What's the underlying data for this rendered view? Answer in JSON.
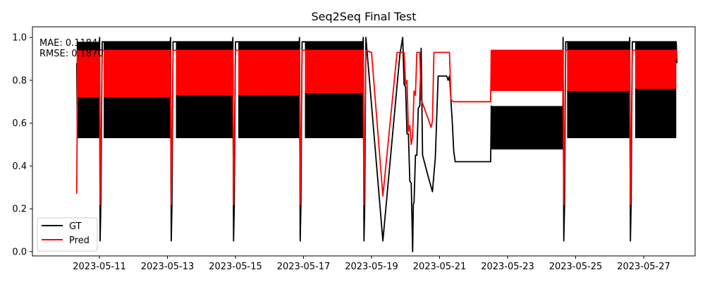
{
  "chart_data": {
    "type": "line",
    "title": "Seq2Seq Final Test",
    "xlabel": "",
    "ylabel": "",
    "x_tick_labels": [
      "2023-05-11",
      "2023-05-13",
      "2023-05-15",
      "2023-05-17",
      "2023-05-19",
      "2023-05-21",
      "2023-05-23",
      "2023-05-25",
      "2023-05-27"
    ],
    "y_tick_labels": [
      "0.0",
      "0.2",
      "0.4",
      "0.6",
      "0.8",
      "1.0"
    ],
    "ylim": [
      -0.02,
      1.05
    ],
    "metrics": [
      "MAE: 0.1184",
      "RMSE: 0.1870"
    ],
    "legend": {
      "position": "lower-left",
      "entries": [
        "GT",
        "Pred"
      ]
    },
    "series": [
      {
        "name": "GT",
        "color": "#000000",
        "bands": [
          {
            "x_start": "2023-05-10 08:00",
            "x_end": "2023-05-11 00:00",
            "low": 0.53,
            "high": 0.98
          },
          {
            "x_start": "2023-05-11 03:00",
            "x_end": "2023-05-13 02:00",
            "low": 0.53,
            "high": 0.98
          },
          {
            "x_start": "2023-05-13 06:00",
            "x_end": "2023-05-14 22:00",
            "low": 0.53,
            "high": 0.98
          },
          {
            "x_start": "2023-05-15 02:00",
            "x_end": "2023-05-16 21:00",
            "low": 0.53,
            "high": 0.98
          },
          {
            "x_start": "2023-05-17 01:00",
            "x_end": "2023-05-18 18:00",
            "low": 0.53,
            "high": 0.98
          },
          {
            "x_start": "2023-05-22 12:00",
            "x_end": "2023-05-24 15:00",
            "low": 0.48,
            "high": 0.68
          },
          {
            "x_start": "2023-05-24 18:00",
            "x_end": "2023-05-26 14:00",
            "low": 0.53,
            "high": 0.98
          },
          {
            "x_start": "2023-05-26 18:00",
            "x_end": "2023-05-27 23:00",
            "low": 0.53,
            "high": 0.98
          }
        ],
        "points": [
          [
            "2023-05-10 08:00",
            0.88
          ],
          [
            "2023-05-10 08:30",
            0.53
          ],
          [
            "2023-05-11 00:00",
            0.98
          ],
          [
            "2023-05-11 00:10",
            1.0
          ],
          [
            "2023-05-11 00:30",
            0.05
          ],
          [
            "2023-05-11 01:00",
            0.21
          ],
          [
            "2023-05-11 02:00",
            0.98
          ],
          [
            "2023-05-13 02:00",
            0.98
          ],
          [
            "2023-05-13 02:10",
            1.0
          ],
          [
            "2023-05-13 02:40",
            0.05
          ],
          [
            "2023-05-13 03:10",
            0.21
          ],
          [
            "2023-05-13 04:00",
            0.98
          ],
          [
            "2023-05-14 22:00",
            0.98
          ],
          [
            "2023-05-14 22:10",
            1.0
          ],
          [
            "2023-05-14 22:40",
            0.05
          ],
          [
            "2023-05-14 23:10",
            0.21
          ],
          [
            "2023-05-15 00:00",
            0.98
          ],
          [
            "2023-05-16 21:00",
            0.98
          ],
          [
            "2023-05-16 21:10",
            1.0
          ],
          [
            "2023-05-16 21:40",
            0.05
          ],
          [
            "2023-05-16 22:10",
            0.21
          ],
          [
            "2023-05-16 23:00",
            0.98
          ],
          [
            "2023-05-18 18:00",
            0.98
          ],
          [
            "2023-05-18 18:10",
            1.0
          ],
          [
            "2023-05-18 18:40",
            0.05
          ],
          [
            "2023-05-18 19:10",
            0.21
          ],
          [
            "2023-05-18 20:00",
            1.0
          ],
          [
            "2023-05-19 08:00",
            0.05
          ],
          [
            "2023-05-19 20:00",
            0.92
          ],
          [
            "2023-05-19 22:00",
            1.0
          ],
          [
            "2023-05-19 23:00",
            0.78
          ],
          [
            "2023-05-20 00:00",
            0.77
          ],
          [
            "2023-05-20 01:00",
            0.55
          ],
          [
            "2023-05-20 02:00",
            0.55
          ],
          [
            "2023-05-20 03:00",
            0.33
          ],
          [
            "2023-05-20 04:00",
            0.32
          ],
          [
            "2023-05-20 05:00",
            0.0
          ],
          [
            "2023-05-20 05:30",
            0.22
          ],
          [
            "2023-05-20 06:00",
            0.23
          ],
          [
            "2023-05-20 07:00",
            0.45
          ],
          [
            "2023-05-20 08:00",
            0.45
          ],
          [
            "2023-05-20 09:00",
            0.67
          ],
          [
            "2023-05-20 10:00",
            0.68
          ],
          [
            "2023-05-20 11:00",
            0.95
          ],
          [
            "2023-05-20 12:00",
            0.45
          ],
          [
            "2023-05-20 16:00",
            0.35
          ],
          [
            "2023-05-20 19:00",
            0.28
          ],
          [
            "2023-05-20 21:00",
            0.44
          ],
          [
            "2023-05-20 23:00",
            0.82
          ],
          [
            "2023-05-21 03:00",
            0.82
          ],
          [
            "2023-05-21 05:00",
            0.82
          ],
          [
            "2023-05-21 06:00",
            0.8
          ],
          [
            "2023-05-21 07:00",
            0.82
          ],
          [
            "2023-05-21 09:00",
            0.6
          ],
          [
            "2023-05-21 10:00",
            0.47
          ],
          [
            "2023-05-21 11:00",
            0.42
          ],
          [
            "2023-05-22 12:00",
            0.42
          ],
          [
            "2023-05-22 12:30",
            0.68
          ],
          [
            "2023-05-22 13:00",
            0.48
          ],
          [
            "2023-05-24 15:00",
            0.48
          ],
          [
            "2023-05-24 15:10",
            1.0
          ],
          [
            "2023-05-24 15:40",
            0.05
          ],
          [
            "2023-05-24 16:10",
            0.22
          ],
          [
            "2023-05-24 17:00",
            0.98
          ],
          [
            "2023-05-26 14:00",
            0.98
          ],
          [
            "2023-05-26 14:10",
            1.0
          ],
          [
            "2023-05-26 14:40",
            0.05
          ],
          [
            "2023-05-26 15:10",
            0.22
          ],
          [
            "2023-05-26 16:00",
            0.98
          ],
          [
            "2023-05-27 23:00",
            0.98
          ],
          [
            "2023-05-27 23:30",
            0.88
          ]
        ]
      },
      {
        "name": "Pred",
        "color": "#ff0000",
        "bands": [
          {
            "x_start": "2023-05-10 08:00",
            "x_end": "2023-05-11 00:00",
            "low": 0.72,
            "high": 0.94
          },
          {
            "x_start": "2023-05-11 03:00",
            "x_end": "2023-05-13 02:00",
            "low": 0.72,
            "high": 0.94
          },
          {
            "x_start": "2023-05-13 06:00",
            "x_end": "2023-05-14 22:00",
            "low": 0.73,
            "high": 0.94
          },
          {
            "x_start": "2023-05-15 02:00",
            "x_end": "2023-05-16 21:00",
            "low": 0.73,
            "high": 0.94
          },
          {
            "x_start": "2023-05-17 01:00",
            "x_end": "2023-05-18 18:00",
            "low": 0.74,
            "high": 0.94
          },
          {
            "x_start": "2023-05-22 12:00",
            "x_end": "2023-05-24 15:00",
            "low": 0.75,
            "high": 0.94
          },
          {
            "x_start": "2023-05-24 18:00",
            "x_end": "2023-05-26 14:00",
            "low": 0.75,
            "high": 0.94
          },
          {
            "x_start": "2023-05-26 18:00",
            "x_end": "2023-05-27 23:00",
            "low": 0.76,
            "high": 0.94
          }
        ],
        "points": [
          [
            "2023-05-10 08:00",
            0.27
          ],
          [
            "2023-05-10 08:30",
            0.72
          ],
          [
            "2023-05-11 00:00",
            0.94
          ],
          [
            "2023-05-11 00:30",
            0.22
          ],
          [
            "2023-05-11 02:00",
            0.94
          ],
          [
            "2023-05-13 02:00",
            0.94
          ],
          [
            "2023-05-13 02:40",
            0.22
          ],
          [
            "2023-05-13 04:00",
            0.94
          ],
          [
            "2023-05-14 22:00",
            0.94
          ],
          [
            "2023-05-14 22:40",
            0.22
          ],
          [
            "2023-05-15 00:00",
            0.94
          ],
          [
            "2023-05-16 21:00",
            0.94
          ],
          [
            "2023-05-16 21:40",
            0.22
          ],
          [
            "2023-05-16 23:00",
            0.94
          ],
          [
            "2023-05-18 18:00",
            0.94
          ],
          [
            "2023-05-18 18:40",
            0.22
          ],
          [
            "2023-05-18 20:00",
            0.94
          ],
          [
            "2023-05-19 00:00",
            0.93
          ],
          [
            "2023-05-19 08:00",
            0.26
          ],
          [
            "2023-05-19 18:00",
            0.93
          ],
          [
            "2023-05-19 23:00",
            0.93
          ],
          [
            "2023-05-20 00:00",
            0.78
          ],
          [
            "2023-05-20 01:00",
            0.8
          ],
          [
            "2023-05-20 02:00",
            0.56
          ],
          [
            "2023-05-20 03:00",
            0.59
          ],
          [
            "2023-05-20 04:00",
            0.5
          ],
          [
            "2023-05-20 05:00",
            0.54
          ],
          [
            "2023-05-20 06:00",
            0.75
          ],
          [
            "2023-05-20 07:00",
            0.73
          ],
          [
            "2023-05-20 08:00",
            0.93
          ],
          [
            "2023-05-20 10:00",
            0.93
          ],
          [
            "2023-05-20 11:00",
            0.71
          ],
          [
            "2023-05-20 16:00",
            0.62
          ],
          [
            "2023-05-20 18:00",
            0.58
          ],
          [
            "2023-05-20 19:00",
            0.61
          ],
          [
            "2023-05-20 20:00",
            0.93
          ],
          [
            "2023-05-21 05:00",
            0.93
          ],
          [
            "2023-05-21 07:00",
            0.93
          ],
          [
            "2023-05-21 08:00",
            0.71
          ],
          [
            "2023-05-21 10:00",
            0.7
          ],
          [
            "2023-05-22 12:00",
            0.7
          ],
          [
            "2023-05-22 12:30",
            0.94
          ],
          [
            "2023-05-24 15:00",
            0.94
          ],
          [
            "2023-05-24 15:40",
            0.22
          ],
          [
            "2023-05-24 17:00",
            0.94
          ],
          [
            "2023-05-26 14:00",
            0.94
          ],
          [
            "2023-05-26 14:40",
            0.22
          ],
          [
            "2023-05-26 16:00",
            0.94
          ],
          [
            "2023-05-27 23:00",
            0.94
          ],
          [
            "2023-05-27 23:30",
            0.9
          ]
        ]
      }
    ]
  }
}
